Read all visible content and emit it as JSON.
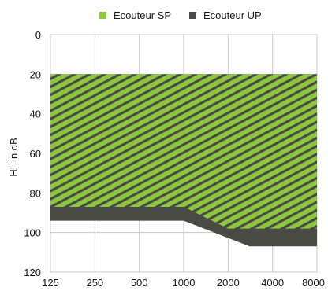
{
  "chart_data": {
    "type": "area",
    "ylabel": "HL in dB",
    "xlabel": "",
    "y_axis_inverted": true,
    "ylim": [
      0,
      120
    ],
    "yticks": [
      0,
      20,
      40,
      60,
      80,
      100,
      120
    ],
    "x": [
      125,
      250,
      500,
      1000,
      2000,
      4000,
      8000
    ],
    "x_tick_labels": [
      "125",
      "250",
      "500",
      "1000",
      "2000",
      "4000",
      "8000"
    ],
    "x_scale": "log",
    "grid": true,
    "legend_placement": "top-center",
    "series": [
      {
        "name": "Ecouteur SP",
        "color": "#8dc63f",
        "pattern": "diagonal-hatch",
        "upper": [
          {
            "x": 125,
            "y": 20
          },
          {
            "x": 8000,
            "y": 20
          }
        ],
        "lower": [
          {
            "x": 125,
            "y": 87
          },
          {
            "x": 1000,
            "y": 87
          },
          {
            "x": 2000,
            "y": 98
          },
          {
            "x": 8000,
            "y": 98
          }
        ]
      },
      {
        "name": "Ecouteur UP",
        "color": "#4a4a44",
        "upper": [
          {
            "x": 125,
            "y": 20
          },
          {
            "x": 8000,
            "y": 20
          }
        ],
        "lower": [
          {
            "x": 125,
            "y": 94
          },
          {
            "x": 1000,
            "y": 94
          },
          {
            "x": 2800,
            "y": 107
          },
          {
            "x": 8000,
            "y": 107
          }
        ]
      }
    ]
  }
}
